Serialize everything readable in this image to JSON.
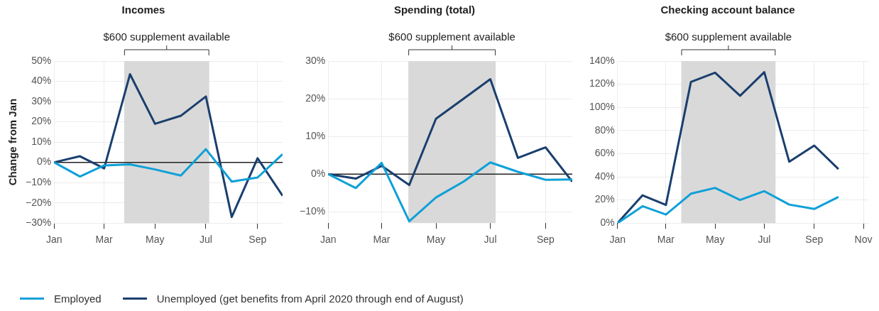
{
  "chart_data": [
    {
      "type": "line",
      "title": "Incomes",
      "ylabel": "Change from Jan",
      "x": [
        "2020-01",
        "2020-02",
        "2020-03",
        "2020-04",
        "2020-05",
        "2020-06",
        "2020-07",
        "2020-08",
        "2020-09",
        "2020-10"
      ],
      "series": [
        {
          "name": "Employed",
          "color": "#0ea0d8",
          "values": [
            0,
            -7,
            -1.5,
            -1,
            -3.5,
            -6.5,
            6.5,
            -9.5,
            -7.5,
            4
          ]
        },
        {
          "name": "Unemployed (get benefits from April 2020 through end of August)",
          "color": "#1a3f6e",
          "values": [
            0,
            3,
            -3,
            43.5,
            19,
            23,
            32.5,
            -27,
            2,
            -16.5
          ]
        }
      ],
      "xlim": [
        "2020-01",
        "2020-10"
      ],
      "xticks": [
        {
          "value": "2020-01",
          "label": "Jan"
        },
        {
          "value": "2020-03",
          "label": "Mar"
        },
        {
          "value": "2020-05",
          "label": "May"
        },
        {
          "value": "2020-07",
          "label": "Jul"
        },
        {
          "value": "2020-09",
          "label": "Sep"
        }
      ],
      "ylim": [
        -30,
        50
      ],
      "yticks": [
        {
          "value": -30,
          "label": "−30%"
        },
        {
          "value": -20,
          "label": "−20%"
        },
        {
          "value": -10,
          "label": "−10%"
        },
        {
          "value": 0,
          "label": "0%"
        },
        {
          "value": 10,
          "label": "10%"
        },
        {
          "value": 20,
          "label": "20%"
        },
        {
          "value": 30,
          "label": "30%"
        },
        {
          "value": 40,
          "label": "40%"
        },
        {
          "value": 50,
          "label": "50%"
        }
      ],
      "bands": [
        {
          "axis": "x",
          "from": "2020-03-25",
          "to": "2020-07-05",
          "label": "$600 supplement available",
          "color": "#d9d9d9"
        }
      ],
      "ref_lines": [
        {
          "axis": "y",
          "value": 0,
          "color": "#222222"
        }
      ],
      "grid": true,
      "legend": "bottom",
      "marker": "none",
      "line_style": "solid"
    },
    {
      "type": "line",
      "title": "Spending (total)",
      "x": [
        "2020-01",
        "2020-02",
        "2020-03",
        "2020-04",
        "2020-05",
        "2020-06",
        "2020-07",
        "2020-08",
        "2020-09",
        "2020-10"
      ],
      "series": [
        {
          "color": "#0ea0d8",
          "values": [
            0,
            -3.7,
            3,
            -12.5,
            -6.2,
            -2,
            3.1,
            0.6,
            -1.5,
            -1.4
          ]
        },
        {
          "color": "#1a3f6e",
          "values": [
            0,
            -1.2,
            2.2,
            -2.9,
            14.7,
            20,
            25.2,
            4.3,
            7.1,
            -2
          ]
        }
      ],
      "xlim": [
        "2020-01",
        "2020-10"
      ],
      "xticks": [
        {
          "value": "2020-01",
          "label": "Jan"
        },
        {
          "value": "2020-03",
          "label": "Mar"
        },
        {
          "value": "2020-05",
          "label": "May"
        },
        {
          "value": "2020-07",
          "label": "Jul"
        },
        {
          "value": "2020-09",
          "label": "Sep"
        }
      ],
      "ylim": [
        -13,
        30
      ],
      "yticks": [
        {
          "value": -10,
          "label": "−10%"
        },
        {
          "value": 0,
          "label": "0%"
        },
        {
          "value": 10,
          "label": "10%"
        },
        {
          "value": 20,
          "label": "20%"
        },
        {
          "value": 30,
          "label": "30%"
        }
      ],
      "bands": [
        {
          "axis": "x",
          "from": "2020-03-31",
          "to": "2020-07-07",
          "label": "$600 supplement available",
          "color": "#d9d9d9"
        }
      ],
      "ref_lines": [
        {
          "axis": "y",
          "value": 0,
          "color": "#222222"
        }
      ],
      "grid": true,
      "marker": "none",
      "line_style": "solid"
    },
    {
      "type": "line",
      "title": "Checking account balance",
      "x": [
        "2020-01",
        "2020-02",
        "2020-03",
        "2020-04",
        "2020-05",
        "2020-06",
        "2020-07",
        "2020-08",
        "2020-09",
        "2020-10"
      ],
      "series": [
        {
          "color": "#0ea0d8",
          "values": [
            0,
            14.6,
            7.4,
            25.4,
            30.4,
            20,
            27.6,
            16,
            12.2,
            22.6
          ]
        },
        {
          "color": "#1a3f6e",
          "values": [
            0,
            24,
            15.7,
            122,
            130,
            110,
            130.4,
            53,
            67,
            46.7
          ]
        }
      ],
      "xlim": [
        "2020-01",
        "2020-11-08"
      ],
      "xticks": [
        {
          "value": "2020-01",
          "label": "Jan"
        },
        {
          "value": "2020-03",
          "label": "Mar"
        },
        {
          "value": "2020-05",
          "label": "May"
        },
        {
          "value": "2020-07",
          "label": "Jul"
        },
        {
          "value": "2020-09",
          "label": "Sep"
        },
        {
          "value": "2020-11",
          "label": "Nov"
        }
      ],
      "ylim": [
        0,
        140
      ],
      "yticks": [
        {
          "value": 0,
          "label": "0%"
        },
        {
          "value": 20,
          "label": "20%"
        },
        {
          "value": 40,
          "label": "40%"
        },
        {
          "value": 60,
          "label": "60%"
        },
        {
          "value": 80,
          "label": "80%"
        },
        {
          "value": 100,
          "label": "100%"
        },
        {
          "value": 120,
          "label": "120%"
        },
        {
          "value": 140,
          "label": "140%"
        }
      ],
      "bands": [
        {
          "axis": "x",
          "from": "2020-03-20",
          "to": "2020-07-15",
          "label": "$600 supplement available",
          "color": "#d9d9d9"
        }
      ],
      "grid": true,
      "marker": "none",
      "line_style": "solid"
    }
  ]
}
